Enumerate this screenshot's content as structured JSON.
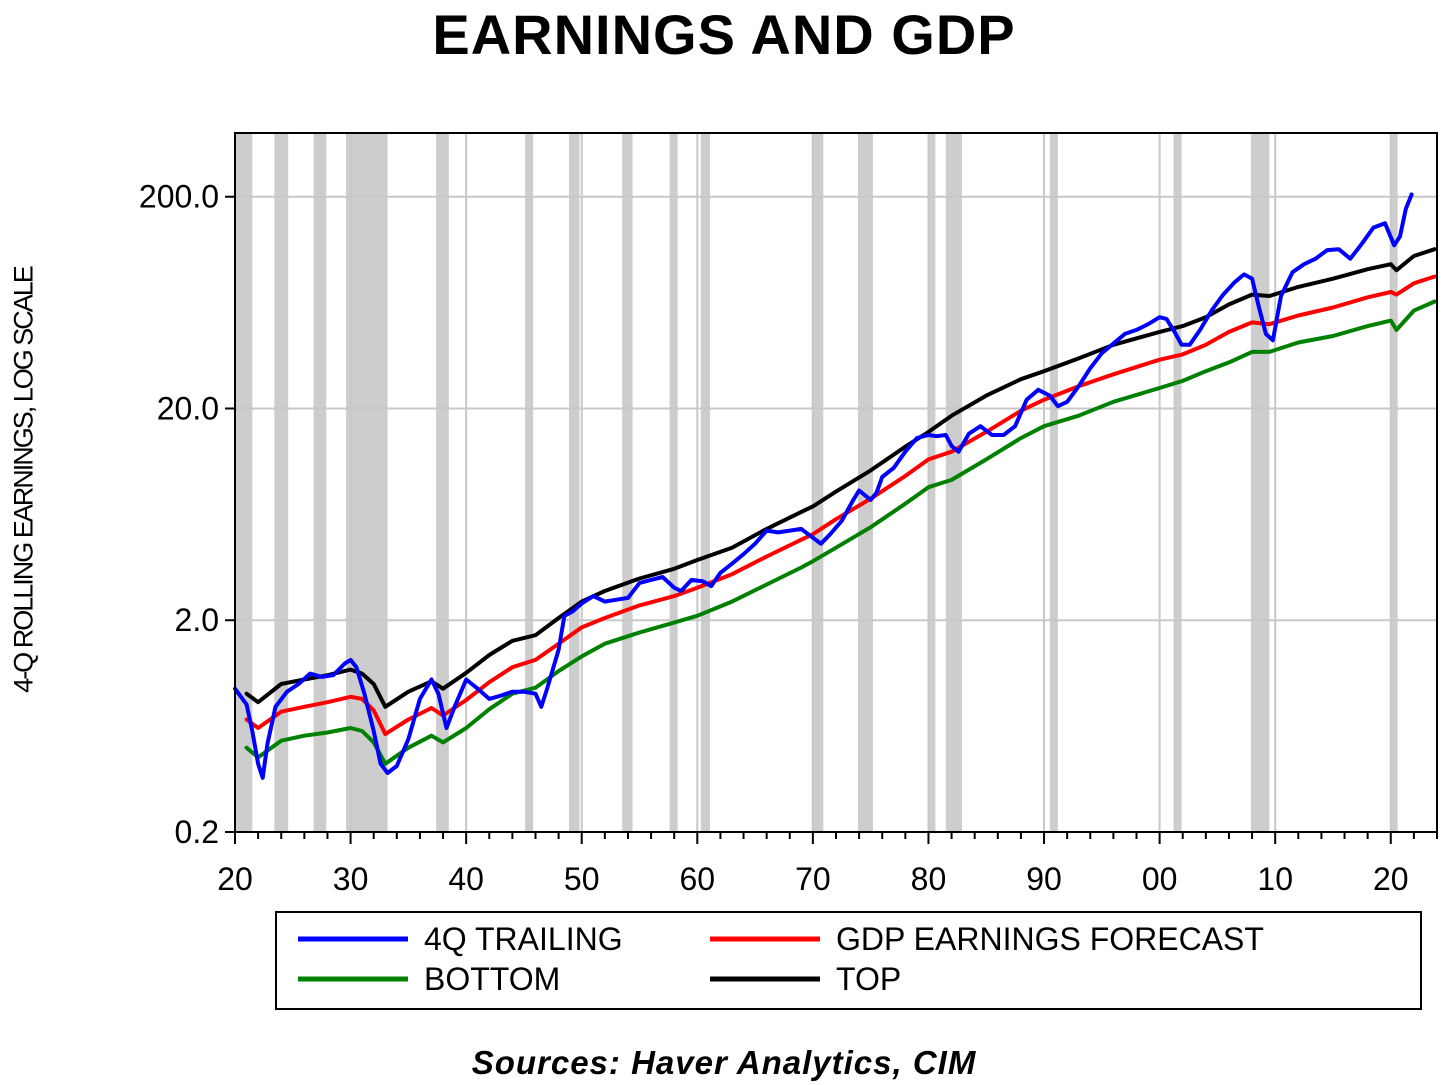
{
  "chart_data": {
    "type": "line",
    "title": "EARNINGS AND GDP",
    "ylabel": "4-Q ROLLING EARNINGS, LOG SCALE",
    "xlabel": "",
    "y_scale": "log",
    "ylim": [
      0.2,
      400
    ],
    "xlim": [
      1920,
      2024
    ],
    "y_ticks": [
      "0.2",
      "2.0",
      "20.0",
      "200.0"
    ],
    "y_tick_values": [
      0.2,
      2.0,
      20.0,
      200.0
    ],
    "x_ticks": [
      "20",
      "30",
      "40",
      "50",
      "60",
      "70",
      "80",
      "90",
      "00",
      "10",
      "20"
    ],
    "x_tick_values": [
      1920,
      1930,
      1940,
      1950,
      1960,
      1970,
      1980,
      1990,
      2000,
      2010,
      2020
    ],
    "grid": true,
    "legend_position": "bottom",
    "recessions": [
      [
        1920.0,
        1921.5
      ],
      [
        1923.4,
        1924.6
      ],
      [
        1926.8,
        1927.9
      ],
      [
        1929.6,
        1933.2
      ],
      [
        1937.4,
        1938.5
      ],
      [
        1945.1,
        1945.8
      ],
      [
        1948.9,
        1949.8
      ],
      [
        1953.5,
        1954.4
      ],
      [
        1957.6,
        1958.3
      ],
      [
        1960.3,
        1961.1
      ],
      [
        1969.9,
        1970.9
      ],
      [
        1973.9,
        1975.2
      ],
      [
        1980.0,
        1980.6
      ],
      [
        1981.5,
        1982.9
      ],
      [
        1990.5,
        1991.2
      ],
      [
        2001.2,
        2001.9
      ],
      [
        2007.9,
        2009.5
      ],
      [
        2020.0,
        2020.6
      ]
    ],
    "series": [
      {
        "name": "4Q TRAILING",
        "color": "#0000ff",
        "x": [
          1920,
          1921,
          1921.5,
          1922,
          1922.4,
          1922.8,
          1923.5,
          1924.5,
          1925.5,
          1926.5,
          1927.5,
          1928.5,
          1929.5,
          1930,
          1930.5,
          1931.2,
          1932,
          1932.6,
          1933.2,
          1934,
          1935,
          1936,
          1937,
          1937.6,
          1938.3,
          1939,
          1940,
          1941,
          1942,
          1943,
          1944,
          1945,
          1946,
          1946.5,
          1947,
          1948,
          1948.5,
          1949.2,
          1950,
          1951,
          1952,
          1953,
          1954,
          1955,
          1956,
          1957,
          1958,
          1958.6,
          1959.5,
          1960.5,
          1961.2,
          1962,
          1963,
          1964,
          1965,
          1966,
          1967,
          1968,
          1969,
          1970,
          1970.7,
          1971.5,
          1972.5,
          1973.5,
          1974,
          1975,
          1975.5,
          1976,
          1977,
          1978,
          1979,
          1980,
          1980.7,
          1981.5,
          1982,
          1982.6,
          1983.5,
          1984.5,
          1985.5,
          1986.5,
          1987.5,
          1988.5,
          1989.5,
          1990.5,
          1991.2,
          1992,
          1993,
          1994,
          1995,
          1996,
          1997,
          1998,
          1999,
          2000,
          2000.6,
          2001.3,
          2001.9,
          2002.6,
          2003.5,
          2004.5,
          2005.5,
          2006.5,
          2007.3,
          2008,
          2008.6,
          2009.2,
          2009.8,
          2010.5,
          2011.5,
          2012.5,
          2013.5,
          2014.5,
          2015.5,
          2016.5,
          2017.5,
          2018.5,
          2019.5,
          2020.3,
          2020.8,
          2021.3,
          2021.8
        ],
        "y": [
          0.95,
          0.8,
          0.6,
          0.42,
          0.36,
          0.52,
          0.78,
          0.92,
          1.0,
          1.12,
          1.08,
          1.1,
          1.25,
          1.3,
          1.2,
          0.9,
          0.6,
          0.42,
          0.38,
          0.41,
          0.55,
          0.85,
          1.05,
          0.9,
          0.62,
          0.78,
          1.05,
          0.95,
          0.85,
          0.88,
          0.92,
          0.92,
          0.9,
          0.78,
          0.95,
          1.45,
          2.1,
          2.2,
          2.4,
          2.6,
          2.45,
          2.5,
          2.55,
          3.0,
          3.1,
          3.2,
          2.85,
          2.75,
          3.1,
          3.05,
          2.9,
          3.35,
          3.7,
          4.1,
          4.6,
          5.3,
          5.2,
          5.3,
          5.4,
          4.9,
          4.6,
          5.1,
          5.9,
          7.4,
          8.2,
          7.4,
          8.0,
          9.5,
          10.5,
          12.5,
          14.5,
          15.0,
          14.8,
          15.0,
          13.3,
          12.5,
          15.2,
          16.5,
          15.0,
          15.0,
          16.5,
          22.0,
          24.5,
          23.0,
          20.5,
          21.5,
          25.5,
          31.0,
          36.5,
          40.5,
          45.0,
          47.0,
          50.0,
          54.0,
          53.0,
          46.0,
          40.0,
          40.0,
          47.0,
          58.0,
          69.0,
          79.0,
          86.0,
          82.0,
          60.0,
          45.0,
          42.0,
          68.0,
          88.0,
          96.0,
          102.0,
          112.0,
          113.0,
          102.0,
          120.0,
          143.0,
          150.0,
          118.0,
          130.0,
          175.0,
          205.0
        ]
      },
      {
        "name": "GDP EARNINGS FORECAST",
        "color": "#ff0000",
        "x": [
          1921,
          1922,
          1924,
          1926,
          1928,
          1930,
          1931,
          1932,
          1933,
          1935,
          1937,
          1938,
          1940,
          1942,
          1944,
          1946,
          1948,
          1950,
          1952,
          1955,
          1958,
          1960,
          1963,
          1966,
          1969,
          1970,
          1972,
          1975,
          1978,
          1980,
          1982,
          1985,
          1988,
          1990,
          1993,
          1996,
          2000,
          2002,
          2004,
          2006,
          2008,
          2009.5,
          2012,
          2015,
          2018,
          2020,
          2020.5,
          2022,
          2023.8
        ],
        "y": [
          0.68,
          0.62,
          0.74,
          0.78,
          0.82,
          0.87,
          0.85,
          0.75,
          0.58,
          0.68,
          0.77,
          0.71,
          0.84,
          1.02,
          1.2,
          1.3,
          1.55,
          1.85,
          2.05,
          2.35,
          2.6,
          2.85,
          3.3,
          4.0,
          4.8,
          5.1,
          6.0,
          7.5,
          9.6,
          11.5,
          12.5,
          15.5,
          19.5,
          22.0,
          25.5,
          29.0,
          34.0,
          36.0,
          40.0,
          46.0,
          51.0,
          50.0,
          55.0,
          60.0,
          67.0,
          71.0,
          69.0,
          78.0,
          84.0
        ]
      },
      {
        "name": "BOTTOM",
        "color": "#008000",
        "x": [
          1921,
          1922,
          1924,
          1926,
          1928,
          1930,
          1931,
          1932,
          1933,
          1935,
          1937,
          1938,
          1940,
          1942,
          1944,
          1946,
          1948,
          1950,
          1952,
          1955,
          1958,
          1960,
          1963,
          1966,
          1969,
          1970,
          1972,
          1975,
          1978,
          1980,
          1982,
          1985,
          1988,
          1990,
          1993,
          1996,
          2000,
          2002,
          2004,
          2006,
          2008,
          2009.5,
          2012,
          2015,
          2018,
          2020,
          2020.5,
          2022,
          2023.8
        ],
        "y": [
          0.5,
          0.45,
          0.54,
          0.57,
          0.59,
          0.62,
          0.6,
          0.53,
          0.42,
          0.5,
          0.57,
          0.53,
          0.62,
          0.76,
          0.9,
          0.96,
          1.15,
          1.35,
          1.55,
          1.75,
          1.95,
          2.1,
          2.45,
          2.95,
          3.55,
          3.8,
          4.4,
          5.5,
          7.1,
          8.5,
          9.2,
          11.5,
          14.5,
          16.5,
          18.5,
          21.5,
          25.0,
          27.0,
          30.0,
          33.0,
          37.0,
          37.0,
          41.0,
          44.0,
          49.0,
          52.0,
          47.0,
          58.0,
          64.0
        ]
      },
      {
        "name": "TOP",
        "color": "#000000",
        "x": [
          1921,
          1922,
          1924,
          1926,
          1928,
          1930,
          1931,
          1932,
          1933,
          1935,
          1937,
          1938,
          1940,
          1942,
          1944,
          1946,
          1948,
          1950,
          1952,
          1955,
          1958,
          1960,
          1963,
          1966,
          1969,
          1970,
          1972,
          1975,
          1978,
          1980,
          1982,
          1985,
          1988,
          1990,
          1993,
          1996,
          2000,
          2002,
          2004,
          2006,
          2008,
          2009.5,
          2012,
          2015,
          2018,
          2020,
          2020.5,
          2022,
          2023.8
        ],
        "y": [
          0.9,
          0.82,
          1.0,
          1.05,
          1.1,
          1.17,
          1.12,
          1.0,
          0.78,
          0.92,
          1.03,
          0.95,
          1.13,
          1.37,
          1.6,
          1.7,
          2.05,
          2.45,
          2.75,
          3.15,
          3.5,
          3.85,
          4.4,
          5.4,
          6.5,
          6.9,
          8.1,
          10.2,
          13.2,
          15.5,
          18.5,
          23.0,
          27.5,
          30.0,
          34.5,
          40.0,
          46.0,
          49.0,
          54.0,
          62.0,
          69.0,
          68.0,
          75.0,
          82.0,
          91.0,
          96.0,
          90.0,
          105.0,
          113.0
        ]
      }
    ]
  },
  "source_text": "Sources:  Haver Analytics, CIM"
}
